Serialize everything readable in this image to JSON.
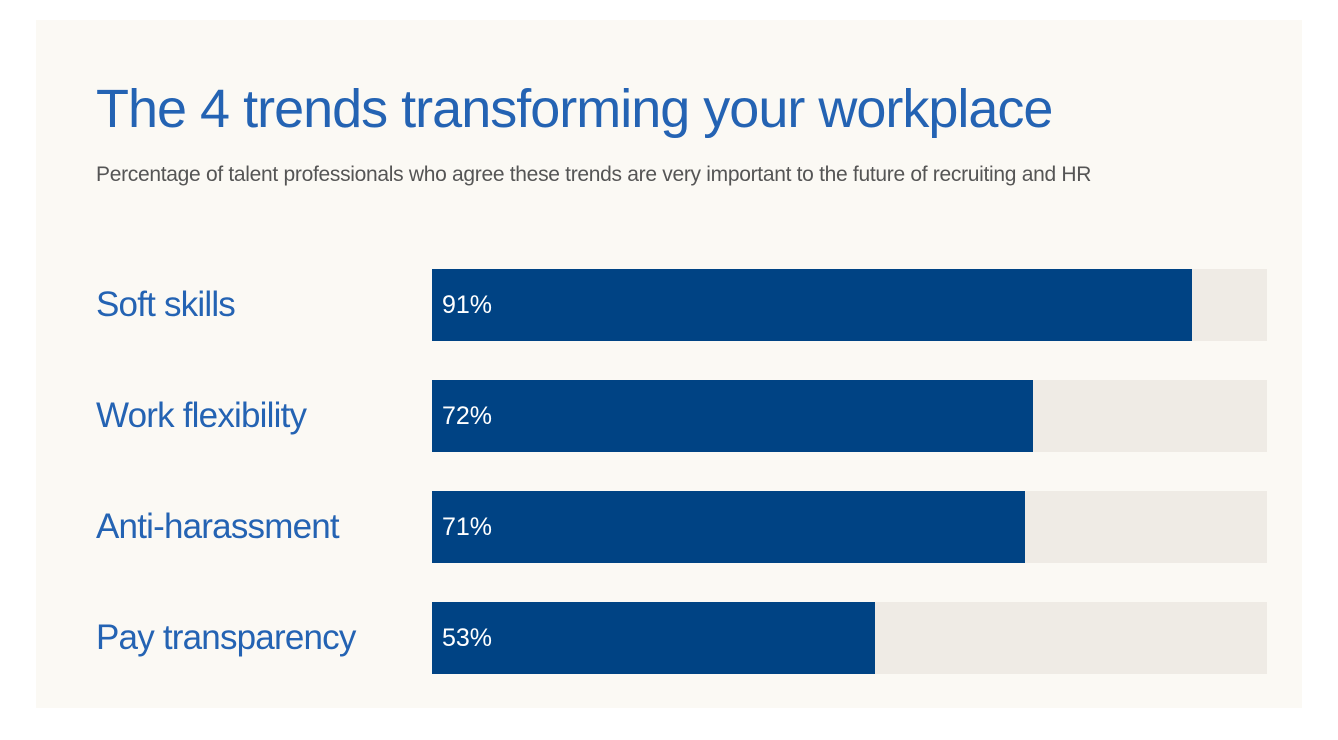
{
  "colors": {
    "background": "#fbf9f4",
    "title": "#2463b3",
    "bar": "#004384",
    "track": "#efebe5",
    "subtitle": "#555555"
  },
  "chart_data": {
    "type": "bar",
    "orientation": "horizontal",
    "title": "The 4 trends transforming your workplace",
    "subtitle": "Percentage of talent professionals who agree these trends are very important to the future of recruiting and HR",
    "xlabel": "",
    "ylabel": "",
    "xlim": [
      0,
      100
    ],
    "grid": false,
    "categories": [
      "Soft skills",
      "Work flexibility",
      "Anti-harassment",
      "Pay transparency"
    ],
    "values": [
      91,
      72,
      71,
      53
    ],
    "value_labels": [
      "91%",
      "72%",
      "71%",
      "53%"
    ]
  }
}
